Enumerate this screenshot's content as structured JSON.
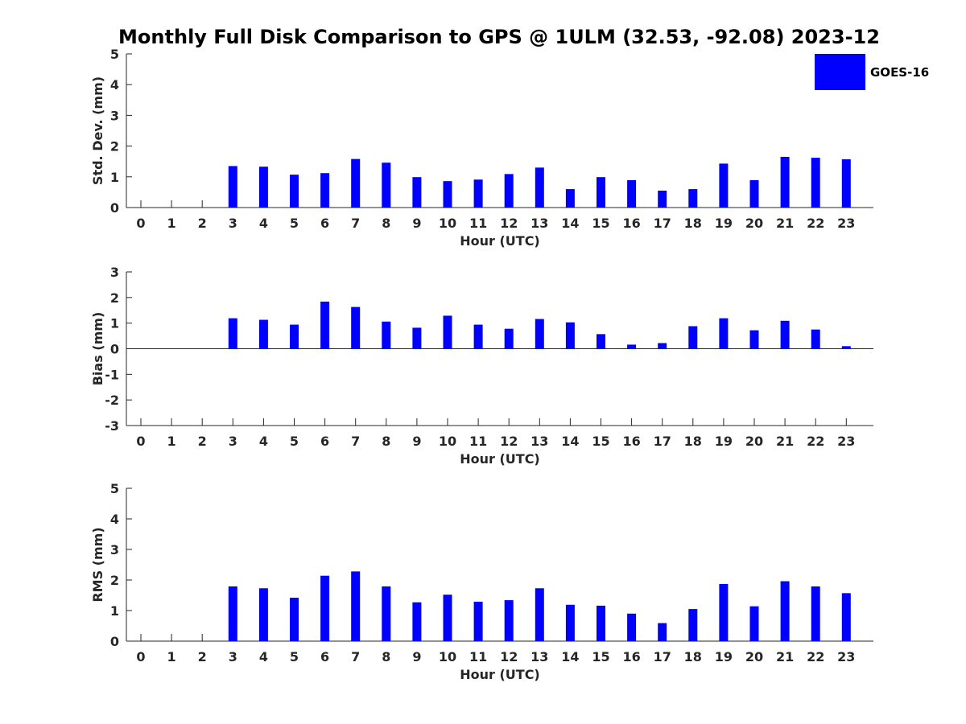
{
  "title": "Monthly Full Disk Comparison to GPS @ 1ULM (32.53, -92.08) 2023-12",
  "legend": {
    "label": "GOES-16",
    "color": "#0000ff",
    "placement": "top-right"
  },
  "chart_data": [
    {
      "type": "bar",
      "ylabel": "Std. Dev. (mm)",
      "xlabel": "Hour (UTC)",
      "ylim": [
        0,
        5
      ],
      "yticks": [
        "0",
        "1",
        "2",
        "3",
        "4",
        "5"
      ],
      "categories": [
        "0",
        "1",
        "2",
        "3",
        "4",
        "5",
        "6",
        "7",
        "8",
        "9",
        "10",
        "11",
        "12",
        "13",
        "14",
        "15",
        "16",
        "17",
        "18",
        "19",
        "20",
        "21",
        "22",
        "23"
      ],
      "series": [
        {
          "name": "GOES-16",
          "color": "#0000ff",
          "values": [
            null,
            null,
            null,
            1.35,
            1.33,
            1.07,
            1.12,
            1.58,
            1.46,
            0.99,
            0.86,
            0.91,
            1.09,
            1.3,
            0.6,
            0.99,
            0.89,
            0.55,
            0.6,
            1.43,
            0.89,
            1.65,
            1.62,
            1.57
          ]
        }
      ]
    },
    {
      "type": "bar",
      "ylabel": "Bias (mm)",
      "xlabel": "Hour (UTC)",
      "ylim": [
        -3,
        3
      ],
      "yticks": [
        "-3",
        "-2",
        "-1",
        "0",
        "1",
        "2",
        "3"
      ],
      "categories": [
        "0",
        "1",
        "2",
        "3",
        "4",
        "5",
        "6",
        "7",
        "8",
        "9",
        "10",
        "11",
        "12",
        "13",
        "14",
        "15",
        "16",
        "17",
        "18",
        "19",
        "20",
        "21",
        "22",
        "23"
      ],
      "series": [
        {
          "name": "GOES-16",
          "color": "#0000ff",
          "values": [
            null,
            null,
            null,
            1.19,
            1.13,
            0.94,
            1.84,
            1.63,
            1.06,
            0.82,
            1.29,
            0.94,
            0.78,
            1.16,
            1.03,
            0.57,
            0.16,
            0.22,
            0.88,
            1.19,
            0.72,
            1.09,
            0.75,
            0.1
          ]
        }
      ]
    },
    {
      "type": "bar",
      "ylabel": "RMS (mm)",
      "xlabel": "Hour (UTC)",
      "ylim": [
        0,
        5
      ],
      "yticks": [
        "0",
        "1",
        "2",
        "3",
        "4",
        "5"
      ],
      "categories": [
        "0",
        "1",
        "2",
        "3",
        "4",
        "5",
        "6",
        "7",
        "8",
        "9",
        "10",
        "11",
        "12",
        "13",
        "14",
        "15",
        "16",
        "17",
        "18",
        "19",
        "20",
        "21",
        "22",
        "23"
      ],
      "series": [
        {
          "name": "GOES-16",
          "color": "#0000ff",
          "values": [
            null,
            null,
            null,
            1.79,
            1.73,
            1.42,
            2.14,
            2.28,
            1.79,
            1.27,
            1.52,
            1.29,
            1.34,
            1.73,
            1.19,
            1.16,
            0.9,
            0.59,
            1.05,
            1.87,
            1.14,
            1.96,
            1.79,
            1.57
          ]
        }
      ]
    }
  ]
}
